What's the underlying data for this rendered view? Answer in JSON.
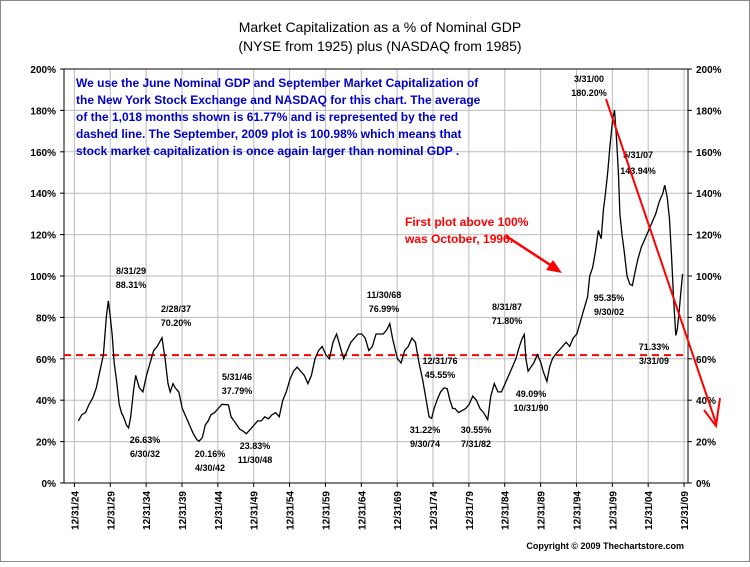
{
  "chart_data": {
    "type": "line",
    "title_line1": "Market Capitalization as a % of Nominal GDP",
    "title_line2": "(NYSE from 1925) plus (NASDAQ from 1985)",
    "note_lines": [
      "We use the June Nominal GDP and September Market Capitalization of",
      "the New York Stock Exchange and NASDAQ for this chart.  The average",
      "of the 1,018 months shown is 61.77% and is represented by the red",
      "dashed line.  The September, 2009 plot is 100.98% which means that",
      "stock market capitalization is once again larger than nominal GDP ."
    ],
    "callout_lines": [
      "First plot above 100%",
      "was October, 1996."
    ],
    "copyright": "Copyright © 2009 Thechartstore.com",
    "ylim": [
      0,
      200
    ],
    "xlim": [
      1923.5,
      2010.5
    ],
    "y_ticks": [
      {
        "value": 0,
        "label": "0%"
      },
      {
        "value": 20,
        "label": "20%"
      },
      {
        "value": 40,
        "label": "40%"
      },
      {
        "value": 60,
        "label": "60%"
      },
      {
        "value": 80,
        "label": "80%"
      },
      {
        "value": 100,
        "label": "100%"
      },
      {
        "value": 120,
        "label": "120%"
      },
      {
        "value": 140,
        "label": "140%"
      },
      {
        "value": 160,
        "label": "160%"
      },
      {
        "value": 180,
        "label": "180%"
      },
      {
        "value": 200,
        "label": "200%"
      }
    ],
    "x_ticks": [
      {
        "value": 1924.95,
        "label": "12/31/24"
      },
      {
        "value": 1929.95,
        "label": "12/31/29"
      },
      {
        "value": 1934.95,
        "label": "12/31/34"
      },
      {
        "value": 1939.95,
        "label": "12/31/39"
      },
      {
        "value": 1944.95,
        "label": "12/31/44"
      },
      {
        "value": 1949.95,
        "label": "12/31/49"
      },
      {
        "value": 1954.95,
        "label": "12/31/54"
      },
      {
        "value": 1959.95,
        "label": "12/31/59"
      },
      {
        "value": 1964.95,
        "label": "12/31/64"
      },
      {
        "value": 1969.95,
        "label": "12/31/69"
      },
      {
        "value": 1974.95,
        "label": "12/31/74"
      },
      {
        "value": 1979.95,
        "label": "12/31/79"
      },
      {
        "value": 1984.95,
        "label": "12/31/84"
      },
      {
        "value": 1989.95,
        "label": "12/31/89"
      },
      {
        "value": 1994.95,
        "label": "12/31/94"
      },
      {
        "value": 1999.95,
        "label": "12/31/99"
      },
      {
        "value": 2004.95,
        "label": "12/31/04"
      },
      {
        "value": 2009.95,
        "label": "12/31/09"
      }
    ],
    "average_line": 61.77,
    "series": [
      {
        "x": [
          1925.5,
          1926.0,
          1926.5,
          1927.0,
          1927.5,
          1928.0,
          1928.5,
          1929.0,
          1929.4,
          1929.67,
          1929.9,
          1930.2,
          1930.5,
          1930.8,
          1931.2,
          1931.5,
          1931.8,
          1932.2,
          1932.5,
          1932.8,
          1933.2,
          1933.5,
          1934.0,
          1934.5,
          1935.0,
          1935.5,
          1936.0,
          1936.5,
          1937.17,
          1937.6,
          1938.0,
          1938.3,
          1938.7,
          1939.0,
          1939.5,
          1940.0,
          1940.5,
          1941.0,
          1941.5,
          1942.0,
          1942.33,
          1942.8,
          1943.2,
          1943.6,
          1944.0,
          1944.5,
          1945.0,
          1945.5,
          1946.42,
          1946.8,
          1947.2,
          1947.6,
          1948.0,
          1948.5,
          1948.92,
          1949.5,
          1950.0,
          1950.5,
          1951.0,
          1951.5,
          1952.0,
          1952.5,
          1953.0,
          1953.5,
          1954.0,
          1954.5,
          1955.0,
          1955.5,
          1956.0,
          1956.5,
          1957.0,
          1957.5,
          1958.0,
          1958.5,
          1959.0,
          1959.5,
          1960.0,
          1960.5,
          1961.0,
          1961.5,
          1962.0,
          1962.5,
          1963.0,
          1963.5,
          1964.0,
          1964.5,
          1965.0,
          1965.5,
          1966.0,
          1966.5,
          1967.0,
          1967.5,
          1968.0,
          1968.5,
          1968.92,
          1969.3,
          1969.7,
          1970.0,
          1970.5,
          1971.0,
          1971.5,
          1972.0,
          1972.5,
          1973.0,
          1973.5,
          1974.0,
          1974.4,
          1974.75,
          1975.1,
          1975.5,
          1976.0,
          1976.5,
          1976.92,
          1977.3,
          1977.7,
          1978.0,
          1978.5,
          1979.0,
          1979.5,
          1980.0,
          1980.5,
          1981.0,
          1981.5,
          1982.0,
          1982.58,
          1983.0,
          1983.5,
          1984.0,
          1984.5,
          1985.0,
          1985.5,
          1986.0,
          1986.5,
          1987.0,
          1987.4,
          1987.67,
          1987.9,
          1988.2,
          1988.6,
          1989.0,
          1989.5,
          1990.0,
          1990.3,
          1990.83,
          1991.2,
          1991.6,
          1992.0,
          1992.5,
          1993.0,
          1993.5,
          1994.0,
          1994.5,
          1995.0,
          1995.5,
          1996.0,
          1996.5,
          1996.8,
          1997.2,
          1997.6,
          1998.0,
          1998.4,
          1998.7,
          1999.0,
          1999.3,
          1999.6,
          2000.0,
          2000.25,
          2000.5,
          2000.8,
          2001.0,
          2001.3,
          2001.6,
          2002.0,
          2002.4,
          2002.75,
          2003.0,
          2003.5,
          2004.0,
          2004.5,
          2005.0,
          2005.5,
          2006.0,
          2006.5,
          2007.0,
          2007.25,
          2007.6,
          2007.9,
          2008.2,
          2008.5,
          2008.8,
          2009.0,
          2009.25,
          2009.5,
          2009.75
        ],
        "y": [
          30,
          33,
          34,
          38,
          41,
          46,
          54,
          62,
          80,
          88,
          82,
          72,
          58,
          50,
          38,
          34,
          32,
          28,
          26.6,
          32,
          45,
          52,
          46,
          44,
          52,
          58,
          64,
          66,
          70.2,
          60,
          48,
          44,
          48,
          46,
          44,
          36,
          32,
          28,
          24,
          21,
          20.2,
          22,
          28,
          30,
          33,
          34,
          36,
          38,
          37.8,
          32,
          30,
          28,
          26,
          25,
          23.8,
          26,
          28,
          30,
          30,
          32,
          31,
          33,
          34,
          32,
          40,
          44,
          50,
          54,
          56,
          54,
          52,
          48,
          52,
          60,
          64,
          66,
          62,
          60,
          68,
          72,
          66,
          60,
          64,
          68,
          70,
          72,
          72,
          70,
          64,
          66,
          72,
          72,
          72,
          74,
          77.0,
          70,
          64,
          60,
          58,
          64,
          66,
          70,
          68,
          58,
          50,
          40,
          32,
          31.2,
          36,
          40,
          44,
          46,
          45.6,
          40,
          36,
          36,
          34,
          35,
          36,
          38,
          42,
          40,
          36,
          34,
          30.6,
          42,
          48,
          44,
          44,
          48,
          52,
          56,
          60,
          66,
          70,
          71.8,
          60,
          54,
          56,
          58,
          62,
          58,
          54,
          49.1,
          56,
          60,
          62,
          64,
          66,
          68,
          66,
          70,
          72,
          78,
          84,
          90,
          100,
          104,
          112,
          122,
          118,
          132,
          140,
          150,
          162,
          176,
          180.2,
          168,
          150,
          130,
          120,
          112,
          100,
          96,
          95.4,
          100,
          108,
          114,
          118,
          122,
          126,
          130,
          136,
          140,
          143.9,
          138,
          128,
          110,
          88,
          71.3,
          74,
          82,
          92,
          101
        ]
      }
    ],
    "annotations": [
      {
        "x": 1929.67,
        "y": 88.31,
        "date": "8/31/29",
        "value": "88.31%"
      },
      {
        "x": 1932.5,
        "y": 26.63,
        "date": "6/30/32",
        "value": "26.63%"
      },
      {
        "x": 1937.17,
        "y": 70.2,
        "date": "2/28/37",
        "value": "70.20%"
      },
      {
        "x": 1942.33,
        "y": 20.16,
        "date": "4/30/42",
        "value": "20.16%"
      },
      {
        "x": 1946.42,
        "y": 37.79,
        "date": "5/31/46",
        "value": "37.79%"
      },
      {
        "x": 1948.92,
        "y": 23.83,
        "date": "11/30/48",
        "value": "23.83%"
      },
      {
        "x": 1968.92,
        "y": 76.99,
        "date": "11/30/68",
        "value": "76.99%"
      },
      {
        "x": 1974.75,
        "y": 31.22,
        "date": "9/30/74",
        "value": "31.22%"
      },
      {
        "x": 1976.92,
        "y": 45.55,
        "date": "12/31/76",
        "value": "45.55%"
      },
      {
        "x": 1982.58,
        "y": 30.55,
        "date": "7/31/82",
        "value": "30.55%"
      },
      {
        "x": 1987.67,
        "y": 71.8,
        "date": "8/31/87",
        "value": "71.80%"
      },
      {
        "x": 1990.83,
        "y": 49.09,
        "date": "10/31/90",
        "value": "49.09%"
      },
      {
        "x": 2000.25,
        "y": 180.2,
        "date": "3/31/00",
        "value": "180.20%"
      },
      {
        "x": 2002.75,
        "y": 95.35,
        "date": "9/30/02",
        "value": "95.35%"
      },
      {
        "x": 2007.42,
        "y": 143.94,
        "date": "5/31/07",
        "value": "143.94%"
      },
      {
        "x": 2009.25,
        "y": 71.33,
        "date": "3/31/09",
        "value": "71.33%"
      }
    ],
    "grid": true,
    "colors": {
      "line": "#000000",
      "average": "#ff0000",
      "note": "#0000cc",
      "callout": "#ff0000",
      "trend": "#ff0000"
    }
  }
}
